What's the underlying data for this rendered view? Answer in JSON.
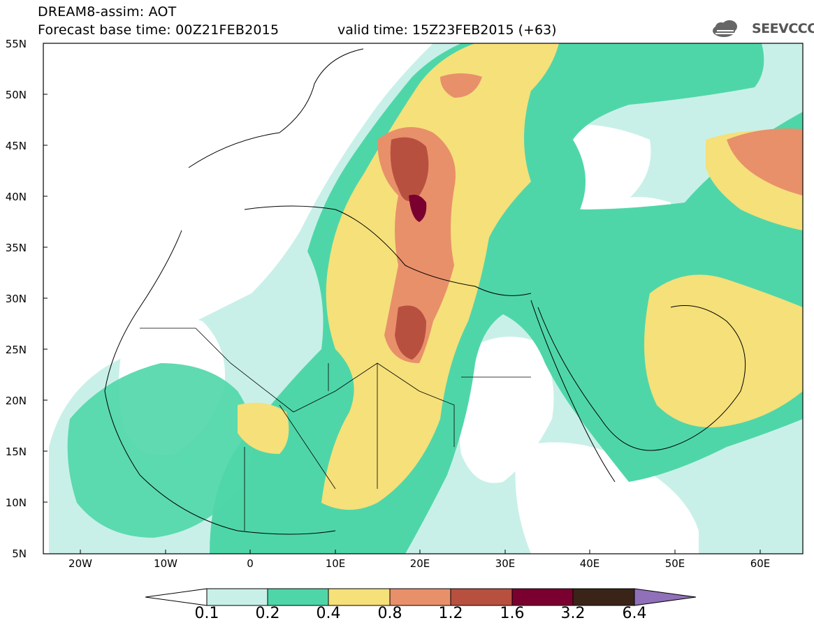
{
  "title": {
    "line1": "DREAM8-assim: AOT",
    "line2": "Forecast base time: 00Z21FEB2015",
    "valid": "valid time: 15Z23FEB2015 (+63)"
  },
  "logo": {
    "name": "cloud-icon",
    "text": "SEEVCCC"
  },
  "map": {
    "lat_labels": [
      "55N",
      "50N",
      "45N",
      "40N",
      "35N",
      "30N",
      "25N",
      "20N",
      "15N",
      "10N",
      "5N"
    ],
    "lon_labels": [
      "20W",
      "10W",
      "0",
      "10E",
      "20E",
      "30E",
      "40E",
      "50E",
      "60E"
    ]
  },
  "colorbar": {
    "levels": [
      "0.1",
      "0.2",
      "0.4",
      "0.8",
      "1.2",
      "1.6",
      "3.2",
      "6.4"
    ],
    "colors": [
      "#c8f0e8",
      "#4fd6a8",
      "#f5e07a",
      "#e8906a",
      "#b85040",
      "#7a0030",
      "#3a2418",
      "#9070b8"
    ]
  },
  "palette": {
    "very_low": "#c8f0e8",
    "low": "#4fd6a8",
    "moderate": "#f5e07a",
    "high": "#e8906a",
    "very_high": "#b85040",
    "extreme": "#7a0030"
  }
}
